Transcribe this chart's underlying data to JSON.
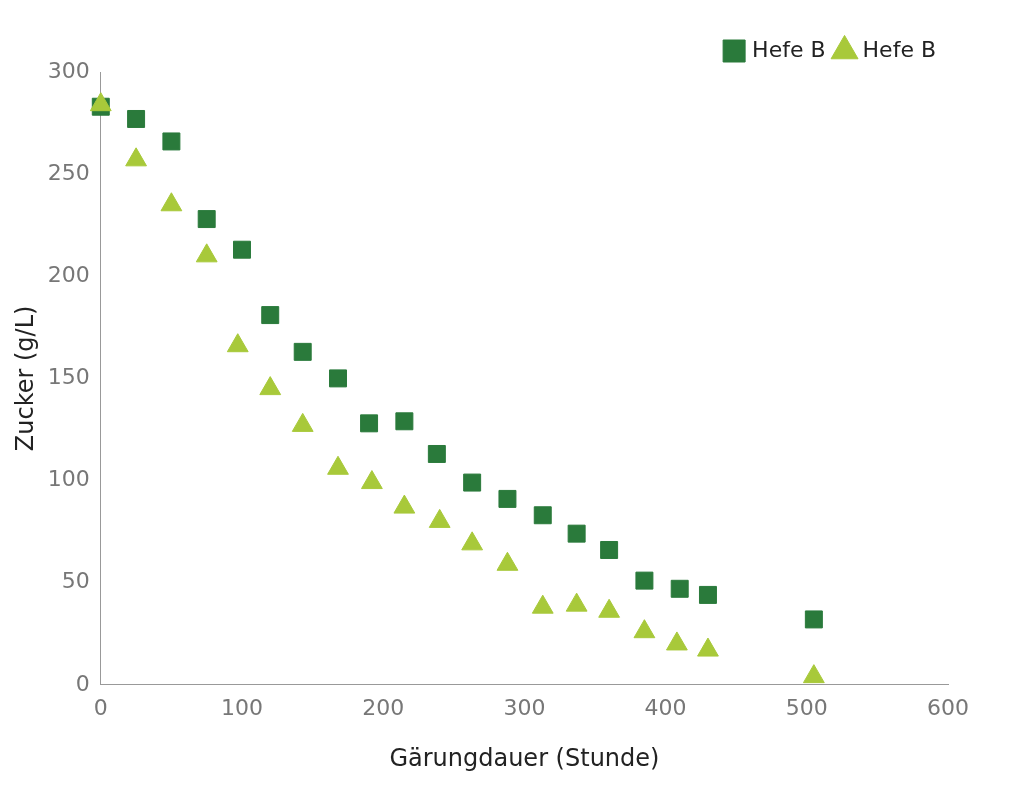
{
  "chart_data": {
    "type": "scatter",
    "xlabel": "Gärungdauer (Stunde)",
    "ylabel": "Zucker (g/L)",
    "xlim": [
      0,
      600
    ],
    "xticks": [
      0,
      100,
      200,
      300,
      400,
      500,
      600
    ],
    "ylim": [
      0,
      300
    ],
    "yticks": [
      0,
      50,
      100,
      150,
      200,
      250,
      300
    ],
    "grid": false,
    "legend": "top right",
    "series": [
      {
        "name": "Hefe B",
        "color": "#2a7a3b",
        "marker": "square",
        "x": [
          0,
          25,
          50,
          75,
          100,
          120,
          143,
          168,
          190,
          215,
          238,
          263,
          288,
          313,
          337,
          360,
          385,
          410,
          430,
          505
        ],
        "values": [
          283,
          277,
          266,
          228,
          213,
          181,
          163,
          150,
          128,
          129,
          113,
          99,
          91,
          83,
          74,
          66,
          51,
          47,
          44,
          32
        ]
      },
      {
        "name": "Hefe B",
        "color": "#a8c93a",
        "marker": "triangle",
        "x": [
          0,
          25,
          50,
          75,
          97,
          120,
          143,
          168,
          192,
          215,
          240,
          263,
          288,
          313,
          337,
          360,
          385,
          408,
          430,
          505
        ],
        "values": [
          284,
          257,
          235,
          210,
          166,
          145,
          127,
          106,
          99,
          87,
          80,
          69,
          59,
          38,
          39,
          36,
          26,
          20,
          17,
          4
        ]
      }
    ]
  }
}
